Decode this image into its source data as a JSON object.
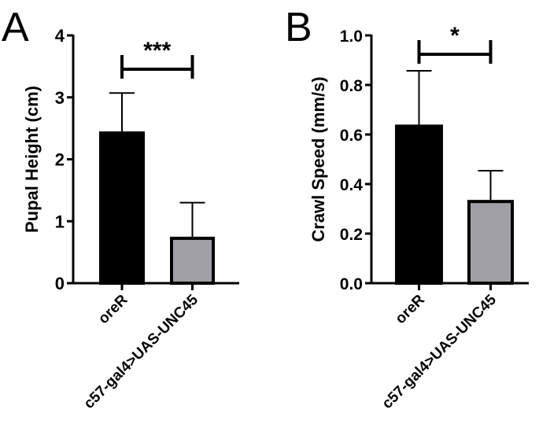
{
  "chart_data": [
    {
      "type": "bar",
      "panel_label": "A",
      "categories": [
        "oreR",
        "c57-gal4>UAS-UNC45"
      ],
      "values": [
        2.45,
        0.75
      ],
      "error_upper": [
        3.07,
        1.3
      ],
      "bar_colors": [
        "#000000",
        "#a0a0a4"
      ],
      "ylabel": "Pupal Height (cm)",
      "ylim": [
        0,
        4
      ],
      "yticks": [
        0,
        1,
        2,
        3,
        4
      ],
      "ytick_labels": [
        "0",
        "1",
        "2",
        "3",
        "4"
      ],
      "significance": "***",
      "grid": false
    },
    {
      "type": "bar",
      "panel_label": "B",
      "categories": [
        "oreR",
        "c57-gal4>UAS-UNC45"
      ],
      "values": [
        0.64,
        0.336
      ],
      "error_upper": [
        0.857,
        0.454
      ],
      "bar_colors": [
        "#000000",
        "#a0a0a4"
      ],
      "ylabel": "Crawl Speed (mm/s)",
      "ylim": [
        0,
        1.0
      ],
      "yticks": [
        0,
        0.2,
        0.4,
        0.6,
        0.8,
        1.0
      ],
      "ytick_labels": [
        "0.0",
        "0.2",
        "0.4",
        "0.6",
        "0.8",
        "1.0"
      ],
      "significance": "*",
      "grid": false
    }
  ]
}
